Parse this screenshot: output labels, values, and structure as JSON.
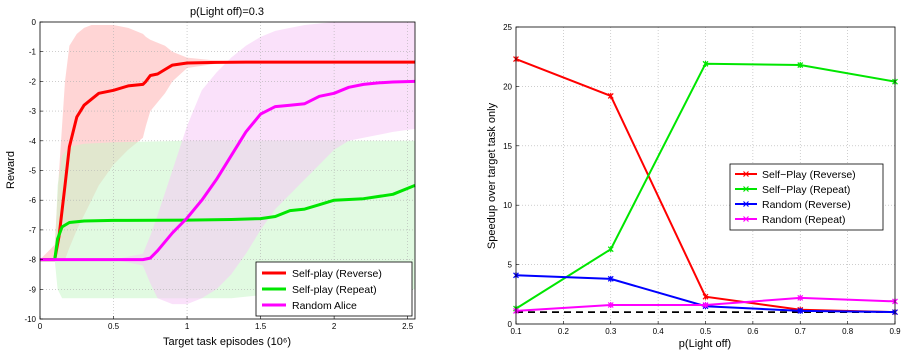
{
  "chart_data": [
    {
      "type": "line",
      "title": "p(Light off)=0.3",
      "xlabel": "Target task episodes (10⁶)",
      "ylabel": "Reward",
      "xlim": [
        0,
        2.55
      ],
      "ylim": [
        -10,
        0
      ],
      "xticks": [
        0,
        0.5,
        1,
        1.5,
        2,
        2.5
      ],
      "xtick_labels": [
        "0",
        "0.5",
        "1",
        "1.5",
        "2",
        "2.5"
      ],
      "yticks": [
        -10,
        -9,
        -8,
        -7,
        -6,
        -5,
        -4,
        -3,
        -2,
        -1,
        0
      ],
      "ytick_labels": [
        "-10",
        "-9",
        "-8",
        "-7",
        "-6",
        "-5",
        "-4",
        "-3",
        "-2",
        "-1",
        "0"
      ],
      "grid": true,
      "legend_position": "bottom-right",
      "series": [
        {
          "name": "Self-play (Reverse)",
          "color": "#ff0000",
          "band_color": "#ffb3b3",
          "x": [
            0,
            0.1,
            0.13,
            0.17,
            0.2,
            0.25,
            0.3,
            0.35,
            0.4,
            0.5,
            0.6,
            0.7,
            0.72,
            0.75,
            0.8,
            0.85,
            0.9,
            1.0,
            1.2,
            1.4,
            1.7,
            2.0,
            2.55
          ],
          "y": [
            -8,
            -8,
            -7.2,
            -5.5,
            -4.2,
            -3.2,
            -2.8,
            -2.6,
            -2.4,
            -2.3,
            -2.15,
            -2.1,
            -2.0,
            -1.8,
            -1.75,
            -1.6,
            -1.45,
            -1.38,
            -1.36,
            -1.35,
            -1.35,
            -1.35,
            -1.35
          ],
          "band_upper": [
            -8,
            -7.5,
            -5,
            -2,
            -0.8,
            -0.4,
            -0.2,
            -0.1,
            -0.1,
            -0.1,
            -0.2,
            -0.4,
            -0.5,
            -0.6,
            -0.7,
            -0.8,
            -1.0,
            -1.2,
            -1.3,
            -1.35,
            -1.35,
            -1.35,
            -1.35
          ],
          "band_lower": [
            -8,
            -8,
            -8,
            -8,
            -7.6,
            -7.0,
            -6.5,
            -6.0,
            -5.5,
            -4.8,
            -4.3,
            -3.9,
            -3.5,
            -3.0,
            -2.7,
            -2.4,
            -2.0,
            -1.55,
            -1.4,
            -1.35,
            -1.35,
            -1.35,
            -1.35
          ]
        },
        {
          "name": "Self-play (Repeat)",
          "color": "#00e600",
          "band_color": "#c8f5c8",
          "x": [
            0,
            0.1,
            0.12,
            0.15,
            0.2,
            0.3,
            0.5,
            1.0,
            1.3,
            1.5,
            1.6,
            1.7,
            1.8,
            1.9,
            2.0,
            2.2,
            2.4,
            2.55
          ],
          "y": [
            -8,
            -8,
            -7.3,
            -6.9,
            -6.75,
            -6.7,
            -6.68,
            -6.67,
            -6.65,
            -6.62,
            -6.55,
            -6.35,
            -6.3,
            -6.15,
            -6.0,
            -5.95,
            -5.8,
            -5.5
          ],
          "band_upper": [
            -8,
            -8,
            -5.5,
            -4.5,
            -4.2,
            -4.1,
            -4.05,
            -4.0,
            -4.0,
            -4.0,
            -4.0,
            -4.0,
            -4.0,
            -4.0,
            -4.0,
            -4.0,
            -4.0,
            -4.0
          ],
          "band_lower": [
            -8,
            -8,
            -9.0,
            -9.3,
            -9.3,
            -9.3,
            -9.3,
            -9.3,
            -9.3,
            -9.2,
            -9.1,
            -9.0,
            -9.0,
            -9.0,
            -9.0,
            -9.0,
            -9.0,
            -9.0
          ]
        },
        {
          "name": "Random Alice",
          "color": "#ff00ff",
          "band_color": "#f6c8f6",
          "x": [
            0,
            0.5,
            0.7,
            0.75,
            0.8,
            0.9,
            1.0,
            1.1,
            1.2,
            1.3,
            1.4,
            1.5,
            1.6,
            1.7,
            1.8,
            1.9,
            2.0,
            2.1,
            2.2,
            2.3,
            2.4,
            2.55
          ],
          "y": [
            -8,
            -8,
            -8,
            -7.95,
            -7.7,
            -7.1,
            -6.6,
            -6.0,
            -5.3,
            -4.5,
            -3.7,
            -3.1,
            -2.85,
            -2.8,
            -2.75,
            -2.5,
            -2.4,
            -2.2,
            -2.1,
            -2.05,
            -2.02,
            -2.0
          ],
          "band_upper": [
            -8,
            -8,
            -7.8,
            -7.2,
            -6.5,
            -5.0,
            -3.5,
            -2.3,
            -1.7,
            -1.2,
            -0.8,
            -0.5,
            -0.3,
            -0.2,
            -0.1,
            -0.05,
            0,
            0,
            0,
            0,
            0,
            0
          ],
          "band_lower": [
            -8,
            -8,
            -8.2,
            -8.8,
            -9.3,
            -9.5,
            -9.5,
            -9.3,
            -9.0,
            -8.5,
            -7.8,
            -7.0,
            -6.3,
            -5.8,
            -5.3,
            -4.8,
            -4.3,
            -4.0,
            -3.9,
            -3.8,
            -3.7,
            -3.6
          ]
        }
      ]
    },
    {
      "type": "line",
      "title": "",
      "xlabel": "p(Light off)",
      "ylabel": "Speedup over target task only",
      "xlim": [
        0.1,
        0.9
      ],
      "ylim": [
        0,
        25
      ],
      "xticks": [
        0.1,
        0.2,
        0.3,
        0.4,
        0.5,
        0.6,
        0.7,
        0.8,
        0.9
      ],
      "xtick_labels": [
        "0.1",
        "0.2",
        "0.3",
        "0.4",
        "0.5",
        "0.6",
        "0.7",
        "0.8",
        "0.9"
      ],
      "yticks": [
        0,
        5,
        10,
        15,
        20,
        25
      ],
      "ytick_labels": [
        "0",
        "5",
        "10",
        "15",
        "20",
        "25"
      ],
      "grid": true,
      "legend_position": "center-right",
      "reference_line": {
        "y": 1,
        "style": "dashed",
        "color": "#000000"
      },
      "x": [
        0.1,
        0.3,
        0.5,
        0.7,
        0.9
      ],
      "series": [
        {
          "name": "Self−Play (Reverse)",
          "color": "#ff0000",
          "values": [
            22.3,
            19.2,
            2.3,
            1.2,
            1.0
          ]
        },
        {
          "name": "Self−Play (Repeat)",
          "color": "#00e600",
          "values": [
            1.3,
            6.3,
            21.9,
            21.8,
            20.4
          ]
        },
        {
          "name": "Random (Reverse)",
          "color": "#0000ff",
          "values": [
            4.1,
            3.8,
            1.5,
            1.1,
            1.0
          ]
        },
        {
          "name": "Random (Repeat)",
          "color": "#ff00ff",
          "values": [
            1.1,
            1.6,
            1.6,
            2.2,
            1.9
          ]
        }
      ]
    }
  ]
}
